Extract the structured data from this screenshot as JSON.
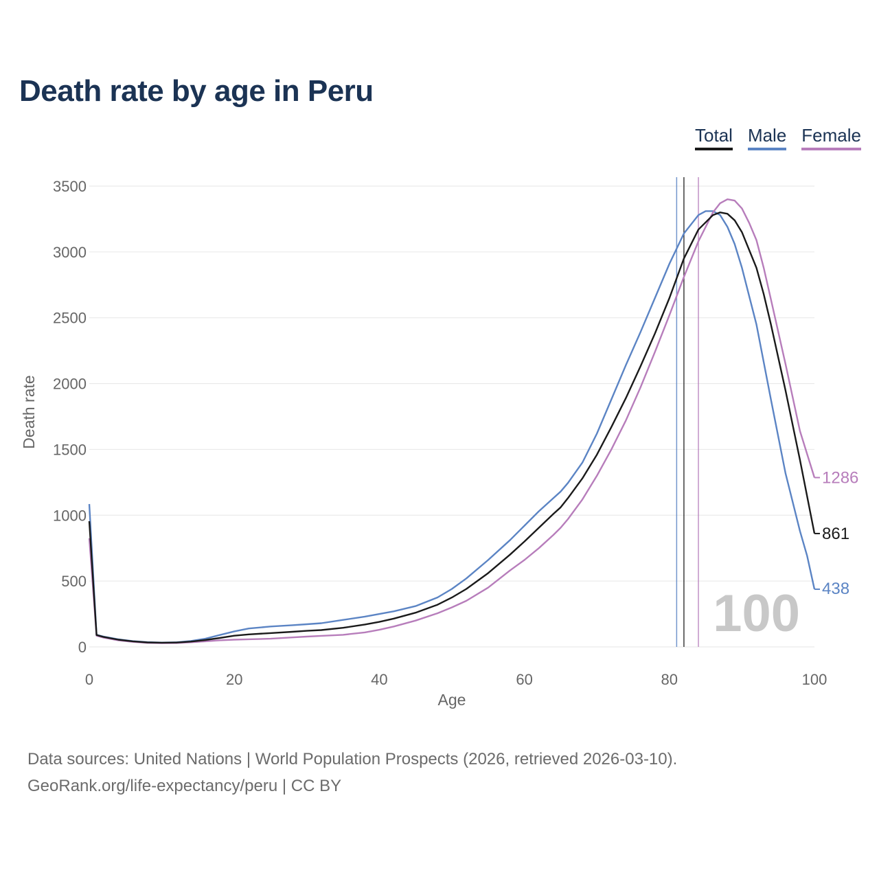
{
  "title": "Death rate by age in Peru",
  "legend": {
    "total": "Total",
    "male": "Male",
    "female": "Female"
  },
  "source": {
    "line1": "Data sources: United Nations | World Population Prospects (2026, retrieved 2026-03-10).",
    "line2": "GeoRank.org/life-expectancy/peru | CC BY"
  },
  "chart_data": {
    "type": "line",
    "title": "Death rate by age in Peru",
    "xlabel": "Age",
    "ylabel": "Death rate",
    "xlim": [
      0,
      100
    ],
    "ylim": [
      0,
      3500
    ],
    "xticks": [
      "0",
      "20",
      "40",
      "60",
      "80",
      "100"
    ],
    "yticks": [
      "0",
      "500",
      "1000",
      "1500",
      "2000",
      "2500",
      "3000",
      "3500"
    ],
    "grid": true,
    "legend_position": "top-right",
    "watermark": "100",
    "colors": {
      "total": "#1a1a1a",
      "male": "#5b84c4",
      "female": "#b77dbb"
    },
    "vertical_markers": [
      {
        "series": "Male",
        "x": 81.0
      },
      {
        "series": "Total",
        "x": 82.0
      },
      {
        "series": "Female",
        "x": 84.0
      }
    ],
    "series": [
      {
        "name": "Total",
        "end_label": "861",
        "x": [
          0,
          1,
          2,
          4,
          6,
          8,
          10,
          12,
          14,
          16,
          18,
          20,
          22,
          25,
          28,
          30,
          32,
          35,
          38,
          40,
          42,
          45,
          48,
          50,
          52,
          55,
          58,
          60,
          62,
          64,
          65,
          66,
          68,
          70,
          72,
          74,
          76,
          78,
          80,
          82,
          84,
          86,
          87,
          88,
          89,
          90,
          92,
          93,
          94,
          96,
          98,
          100
        ],
        "values": [
          955,
          90,
          75,
          55,
          42,
          34,
          32,
          33,
          40,
          52,
          68,
          85,
          95,
          105,
          115,
          122,
          128,
          145,
          170,
          190,
          215,
          260,
          320,
          375,
          440,
          560,
          700,
          800,
          905,
          1010,
          1060,
          1130,
          1280,
          1460,
          1670,
          1890,
          2130,
          2380,
          2650,
          2950,
          3170,
          3280,
          3300,
          3290,
          3240,
          3150,
          2880,
          2680,
          2450,
          1950,
          1420,
          861
        ]
      },
      {
        "name": "Male",
        "end_label": "438",
        "x": [
          0,
          1,
          2,
          4,
          6,
          8,
          10,
          12,
          14,
          16,
          18,
          20,
          22,
          25,
          28,
          30,
          32,
          35,
          38,
          40,
          42,
          45,
          48,
          50,
          52,
          55,
          58,
          60,
          62,
          64,
          65,
          66,
          68,
          70,
          72,
          74,
          76,
          78,
          80,
          82,
          84,
          85,
          86,
          87,
          88,
          89,
          90,
          92,
          94,
          96,
          98,
          99,
          100
        ],
        "values": [
          1085,
          92,
          78,
          58,
          44,
          36,
          33,
          35,
          45,
          62,
          90,
          118,
          140,
          155,
          165,
          172,
          180,
          205,
          230,
          250,
          270,
          310,
          375,
          440,
          520,
          660,
          810,
          920,
          1030,
          1130,
          1180,
          1245,
          1400,
          1620,
          1880,
          2140,
          2390,
          2650,
          2910,
          3140,
          3280,
          3310,
          3310,
          3280,
          3190,
          3060,
          2880,
          2450,
          1880,
          1320,
          880,
          690,
          438
        ]
      },
      {
        "name": "Female",
        "end_label": "1286",
        "x": [
          0,
          1,
          2,
          4,
          6,
          8,
          10,
          12,
          14,
          16,
          18,
          20,
          22,
          25,
          28,
          30,
          32,
          35,
          38,
          40,
          42,
          45,
          48,
          50,
          52,
          55,
          58,
          60,
          62,
          64,
          65,
          66,
          68,
          70,
          72,
          74,
          76,
          78,
          80,
          82,
          84,
          86,
          87,
          88,
          89,
          90,
          91,
          92,
          93,
          94,
          96,
          98,
          100
        ],
        "values": [
          825,
          85,
          70,
          50,
          38,
          30,
          28,
          29,
          35,
          42,
          50,
          55,
          58,
          62,
          72,
          78,
          84,
          92,
          110,
          130,
          155,
          200,
          255,
          300,
          350,
          450,
          580,
          660,
          750,
          850,
          905,
          970,
          1120,
          1300,
          1500,
          1720,
          1970,
          2240,
          2520,
          2810,
          3080,
          3300,
          3370,
          3400,
          3390,
          3330,
          3220,
          3090,
          2880,
          2640,
          2150,
          1640,
          1286
        ]
      }
    ]
  }
}
